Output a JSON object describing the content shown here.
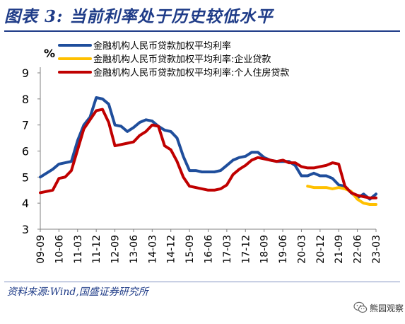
{
  "figure": {
    "title": "图表 3:  当前利率处于历史较低水平",
    "source": "资料来源:Wind,国盛证券研究所",
    "watermark": "熊园观察"
  },
  "chart_data": {
    "type": "line",
    "ylabel": "%",
    "ylim": [
      3,
      9
    ],
    "yticks": [
      3,
      4,
      5,
      6,
      7,
      8,
      9
    ],
    "grid": false,
    "legend": "top",
    "x_start": "09-09",
    "x_labels": [
      "09-09",
      "10-06",
      "11-03",
      "11-12",
      "12-09",
      "13-06",
      "14-03",
      "14-12",
      "15-09",
      "16-06",
      "17-03",
      "17-12",
      "18-09",
      "19-06",
      "20-03",
      "20-12",
      "21-09",
      "22-06",
      "23-03"
    ],
    "series": [
      {
        "name": "金融机构人民币贷款加权平均利率",
        "color": "#1f4e9c",
        "points": [
          [
            "09-09",
            5.0
          ],
          [
            "10-03",
            5.3
          ],
          [
            "10-06",
            5.5
          ],
          [
            "10-09",
            5.55
          ],
          [
            "10-12",
            5.6
          ],
          [
            "11-03",
            6.4
          ],
          [
            "11-06",
            7.0
          ],
          [
            "11-09",
            7.3
          ],
          [
            "11-12",
            8.05
          ],
          [
            "12-03",
            8.0
          ],
          [
            "12-06",
            7.8
          ],
          [
            "12-09",
            7.0
          ],
          [
            "12-12",
            6.95
          ],
          [
            "13-03",
            6.75
          ],
          [
            "13-06",
            6.9
          ],
          [
            "13-09",
            7.1
          ],
          [
            "13-12",
            7.2
          ],
          [
            "14-03",
            7.15
          ],
          [
            "14-06",
            6.95
          ],
          [
            "14-09",
            6.8
          ],
          [
            "14-12",
            6.75
          ],
          [
            "15-03",
            6.5
          ],
          [
            "15-06",
            5.8
          ],
          [
            "15-09",
            5.25
          ],
          [
            "15-12",
            5.25
          ],
          [
            "16-03",
            5.2
          ],
          [
            "16-06",
            5.2
          ],
          [
            "16-09",
            5.2
          ],
          [
            "16-12",
            5.25
          ],
          [
            "17-03",
            5.45
          ],
          [
            "17-06",
            5.65
          ],
          [
            "17-09",
            5.75
          ],
          [
            "17-12",
            5.8
          ],
          [
            "18-03",
            5.95
          ],
          [
            "18-06",
            5.95
          ],
          [
            "18-09",
            5.75
          ],
          [
            "18-12",
            5.65
          ],
          [
            "19-03",
            5.6
          ],
          [
            "19-06",
            5.6
          ],
          [
            "19-09",
            5.6
          ],
          [
            "19-12",
            5.45
          ],
          [
            "20-03",
            5.05
          ],
          [
            "20-06",
            5.05
          ],
          [
            "20-09",
            5.15
          ],
          [
            "20-12",
            5.05
          ],
          [
            "21-03",
            5.05
          ],
          [
            "21-06",
            4.95
          ],
          [
            "21-09",
            4.7
          ],
          [
            "21-12",
            4.65
          ],
          [
            "22-03",
            4.4
          ],
          [
            "22-06",
            4.2
          ],
          [
            "22-09",
            4.35
          ],
          [
            "22-12",
            4.15
          ],
          [
            "23-03",
            4.35
          ]
        ]
      },
      {
        "name": "金融机构人民币贷款加权平均利率:企业贷款",
        "color": "#ffc000",
        "points": [
          [
            "20-06",
            4.65
          ],
          [
            "20-09",
            4.6
          ],
          [
            "20-12",
            4.6
          ],
          [
            "21-03",
            4.6
          ],
          [
            "21-06",
            4.55
          ],
          [
            "21-09",
            4.6
          ],
          [
            "21-12",
            4.55
          ],
          [
            "22-03",
            4.45
          ],
          [
            "22-06",
            4.15
          ],
          [
            "22-09",
            4.0
          ],
          [
            "22-12",
            3.95
          ],
          [
            "23-03",
            3.95
          ]
        ]
      },
      {
        "name": "金融机构人民币贷款加权平均利率:个人住房贷款",
        "color": "#c00000",
        "points": [
          [
            "09-09",
            4.4
          ],
          [
            "10-03",
            4.5
          ],
          [
            "10-06",
            4.95
          ],
          [
            "10-09",
            5.0
          ],
          [
            "10-12",
            5.25
          ],
          [
            "11-03",
            6.05
          ],
          [
            "11-06",
            6.85
          ],
          [
            "11-09",
            7.2
          ],
          [
            "11-12",
            7.55
          ],
          [
            "12-03",
            7.6
          ],
          [
            "12-06",
            7.1
          ],
          [
            "12-09",
            6.2
          ],
          [
            "12-12",
            6.25
          ],
          [
            "13-03",
            6.3
          ],
          [
            "13-06",
            6.35
          ],
          [
            "13-09",
            6.6
          ],
          [
            "13-12",
            6.75
          ],
          [
            "14-03",
            7.0
          ],
          [
            "14-06",
            6.95
          ],
          [
            "14-09",
            6.2
          ],
          [
            "14-12",
            6.05
          ],
          [
            "15-03",
            5.6
          ],
          [
            "15-06",
            5.0
          ],
          [
            "15-09",
            4.65
          ],
          [
            "15-12",
            4.6
          ],
          [
            "16-03",
            4.55
          ],
          [
            "16-06",
            4.5
          ],
          [
            "16-09",
            4.5
          ],
          [
            "16-12",
            4.55
          ],
          [
            "17-03",
            4.7
          ],
          [
            "17-06",
            5.1
          ],
          [
            "17-09",
            5.3
          ],
          [
            "17-12",
            5.45
          ],
          [
            "18-03",
            5.65
          ],
          [
            "18-06",
            5.75
          ],
          [
            "18-09",
            5.7
          ],
          [
            "18-12",
            5.65
          ],
          [
            "19-03",
            5.6
          ],
          [
            "19-06",
            5.65
          ],
          [
            "19-09",
            5.55
          ],
          [
            "19-12",
            5.55
          ],
          [
            "20-03",
            5.4
          ],
          [
            "20-06",
            5.35
          ],
          [
            "20-09",
            5.35
          ],
          [
            "20-12",
            5.4
          ],
          [
            "21-03",
            5.45
          ],
          [
            "21-06",
            5.55
          ],
          [
            "21-09",
            5.5
          ],
          [
            "21-12",
            4.65
          ],
          [
            "22-03",
            4.4
          ],
          [
            "22-06",
            4.3
          ],
          [
            "22-09",
            4.25
          ],
          [
            "22-12",
            4.2
          ],
          [
            "23-03",
            4.2
          ]
        ]
      }
    ]
  }
}
